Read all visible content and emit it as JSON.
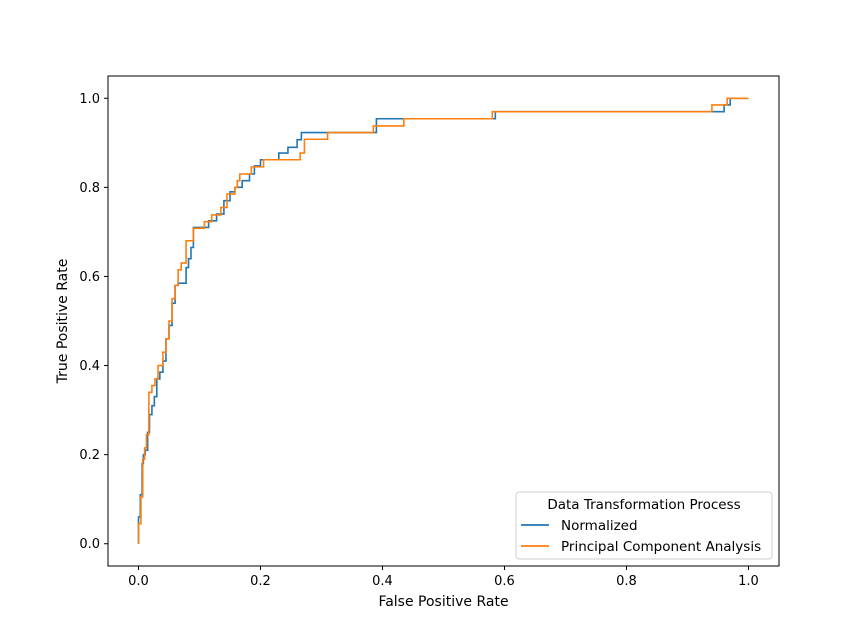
{
  "chart_data": {
    "type": "line",
    "title": "",
    "xlabel": "False Positive Rate",
    "ylabel": "True Positive Rate",
    "xlim": [
      -0.05,
      1.05
    ],
    "ylim": [
      -0.05,
      1.05
    ],
    "xticks": [
      0.0,
      0.2,
      0.4,
      0.6,
      0.8,
      1.0
    ],
    "yticks": [
      0.0,
      0.2,
      0.4,
      0.6,
      0.8,
      1.0
    ],
    "xtick_labels": [
      "0.0",
      "0.2",
      "0.4",
      "0.6",
      "0.8",
      "1.0"
    ],
    "ytick_labels": [
      "0.0",
      "0.2",
      "0.4",
      "0.6",
      "0.8",
      "1.0"
    ],
    "grid": false,
    "legend": {
      "title": "Data Transformation Process",
      "placement": "lower-right"
    },
    "series": [
      {
        "name": "Normalized",
        "color": "#1f77b4",
        "step": true,
        "x": [
          0.0,
          0.0,
          0.003,
          0.003,
          0.006,
          0.006,
          0.008,
          0.008,
          0.011,
          0.011,
          0.015,
          0.015,
          0.018,
          0.018,
          0.022,
          0.022,
          0.026,
          0.026,
          0.03,
          0.03,
          0.035,
          0.035,
          0.04,
          0.04,
          0.045,
          0.045,
          0.05,
          0.05,
          0.055,
          0.055,
          0.06,
          0.06,
          0.065,
          0.065,
          0.078,
          0.078,
          0.082,
          0.082,
          0.086,
          0.086,
          0.09,
          0.09,
          0.115,
          0.115,
          0.128,
          0.128,
          0.14,
          0.14,
          0.15,
          0.15,
          0.158,
          0.158,
          0.17,
          0.17,
          0.182,
          0.182,
          0.19,
          0.19,
          0.2,
          0.2,
          0.23,
          0.23,
          0.245,
          0.245,
          0.26,
          0.26,
          0.267,
          0.267,
          0.31,
          0.31,
          0.39,
          0.39,
          0.4,
          0.4,
          0.435,
          0.435,
          0.585,
          0.585,
          0.605,
          0.605,
          0.96,
          0.96,
          0.97,
          0.97,
          0.98,
          0.98,
          1.0
        ],
        "y": [
          0.0,
          0.06,
          0.06,
          0.11,
          0.11,
          0.18,
          0.18,
          0.2,
          0.2,
          0.21,
          0.21,
          0.25,
          0.25,
          0.29,
          0.29,
          0.31,
          0.31,
          0.33,
          0.33,
          0.37,
          0.37,
          0.385,
          0.385,
          0.41,
          0.41,
          0.46,
          0.46,
          0.49,
          0.49,
          0.54,
          0.54,
          0.58,
          0.58,
          0.585,
          0.585,
          0.62,
          0.62,
          0.64,
          0.64,
          0.665,
          0.665,
          0.71,
          0.71,
          0.725,
          0.725,
          0.74,
          0.74,
          0.77,
          0.77,
          0.79,
          0.79,
          0.8,
          0.8,
          0.815,
          0.815,
          0.83,
          0.83,
          0.848,
          0.848,
          0.862,
          0.862,
          0.877,
          0.877,
          0.89,
          0.89,
          0.907,
          0.907,
          0.923,
          0.923,
          0.923,
          0.923,
          0.954,
          0.954,
          0.954,
          0.954,
          0.954,
          0.954,
          0.97,
          0.97,
          0.97,
          0.97,
          0.985,
          0.985,
          1.0,
          1.0,
          1.0,
          1.0
        ]
      },
      {
        "name": "Principal Component Analysis",
        "color": "#ff7f0e",
        "step": true,
        "x": [
          0.0,
          0.0,
          0.004,
          0.004,
          0.007,
          0.007,
          0.01,
          0.01,
          0.013,
          0.013,
          0.017,
          0.017,
          0.022,
          0.022,
          0.027,
          0.027,
          0.032,
          0.032,
          0.04,
          0.04,
          0.045,
          0.045,
          0.05,
          0.05,
          0.055,
          0.055,
          0.06,
          0.06,
          0.065,
          0.065,
          0.07,
          0.07,
          0.078,
          0.078,
          0.09,
          0.09,
          0.108,
          0.108,
          0.12,
          0.12,
          0.135,
          0.135,
          0.145,
          0.145,
          0.158,
          0.158,
          0.162,
          0.162,
          0.166,
          0.166,
          0.185,
          0.185,
          0.205,
          0.205,
          0.265,
          0.265,
          0.272,
          0.272,
          0.31,
          0.31,
          0.385,
          0.385,
          0.435,
          0.435,
          0.58,
          0.58,
          0.94,
          0.94,
          0.965,
          0.965,
          1.0
        ],
        "y": [
          0.0,
          0.045,
          0.045,
          0.105,
          0.105,
          0.19,
          0.19,
          0.215,
          0.215,
          0.245,
          0.245,
          0.34,
          0.34,
          0.355,
          0.355,
          0.37,
          0.37,
          0.4,
          0.4,
          0.43,
          0.43,
          0.46,
          0.46,
          0.5,
          0.5,
          0.55,
          0.55,
          0.58,
          0.58,
          0.615,
          0.615,
          0.63,
          0.63,
          0.68,
          0.68,
          0.708,
          0.708,
          0.723,
          0.723,
          0.738,
          0.738,
          0.755,
          0.755,
          0.785,
          0.785,
          0.8,
          0.8,
          0.815,
          0.815,
          0.83,
          0.83,
          0.846,
          0.846,
          0.862,
          0.862,
          0.877,
          0.877,
          0.908,
          0.908,
          0.923,
          0.923,
          0.938,
          0.938,
          0.954,
          0.954,
          0.97,
          0.97,
          0.985,
          0.985,
          1.0,
          1.0
        ]
      }
    ]
  }
}
